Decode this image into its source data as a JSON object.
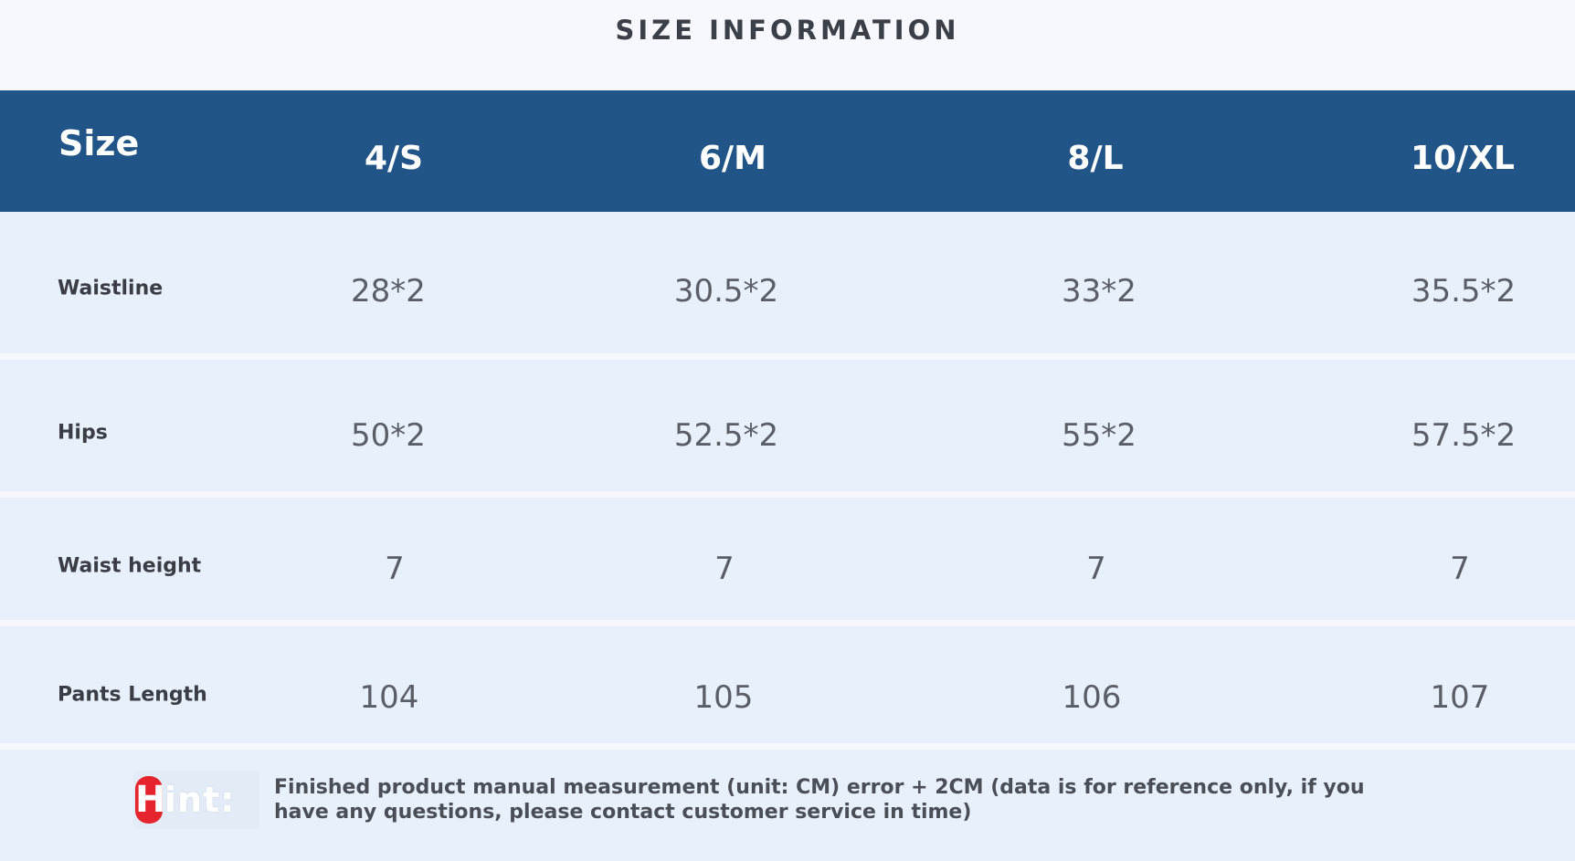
{
  "title": "SIZE INFORMATION",
  "header": {
    "size_label": "Size",
    "sizes": [
      "4/S",
      "6/M",
      "8/L",
      "10/XL"
    ]
  },
  "rows": [
    {
      "label": "Waistline",
      "values": [
        "28*2",
        "30.5*2",
        "33*2",
        "35.5*2"
      ]
    },
    {
      "label": "Hips",
      "values": [
        "50*2",
        "52.5*2",
        "55*2",
        "57.5*2"
      ]
    },
    {
      "label": "Waist height",
      "values": [
        "7",
        "7",
        "7",
        "7"
      ]
    },
    {
      "label": "Pants Length",
      "values": [
        "104",
        "105",
        "106",
        "107"
      ]
    }
  ],
  "hint": {
    "badge_first_letter": "H",
    "badge_rest": "int:",
    "text": "Finished product manual measurement (unit: CM) error + 2CM (data is for reference only, if you have any questions, please contact customer service in time)"
  },
  "colors": {
    "header_bg": "#215487",
    "row_bg": "#e8f1fb",
    "hint_accent": "#e5242e"
  }
}
